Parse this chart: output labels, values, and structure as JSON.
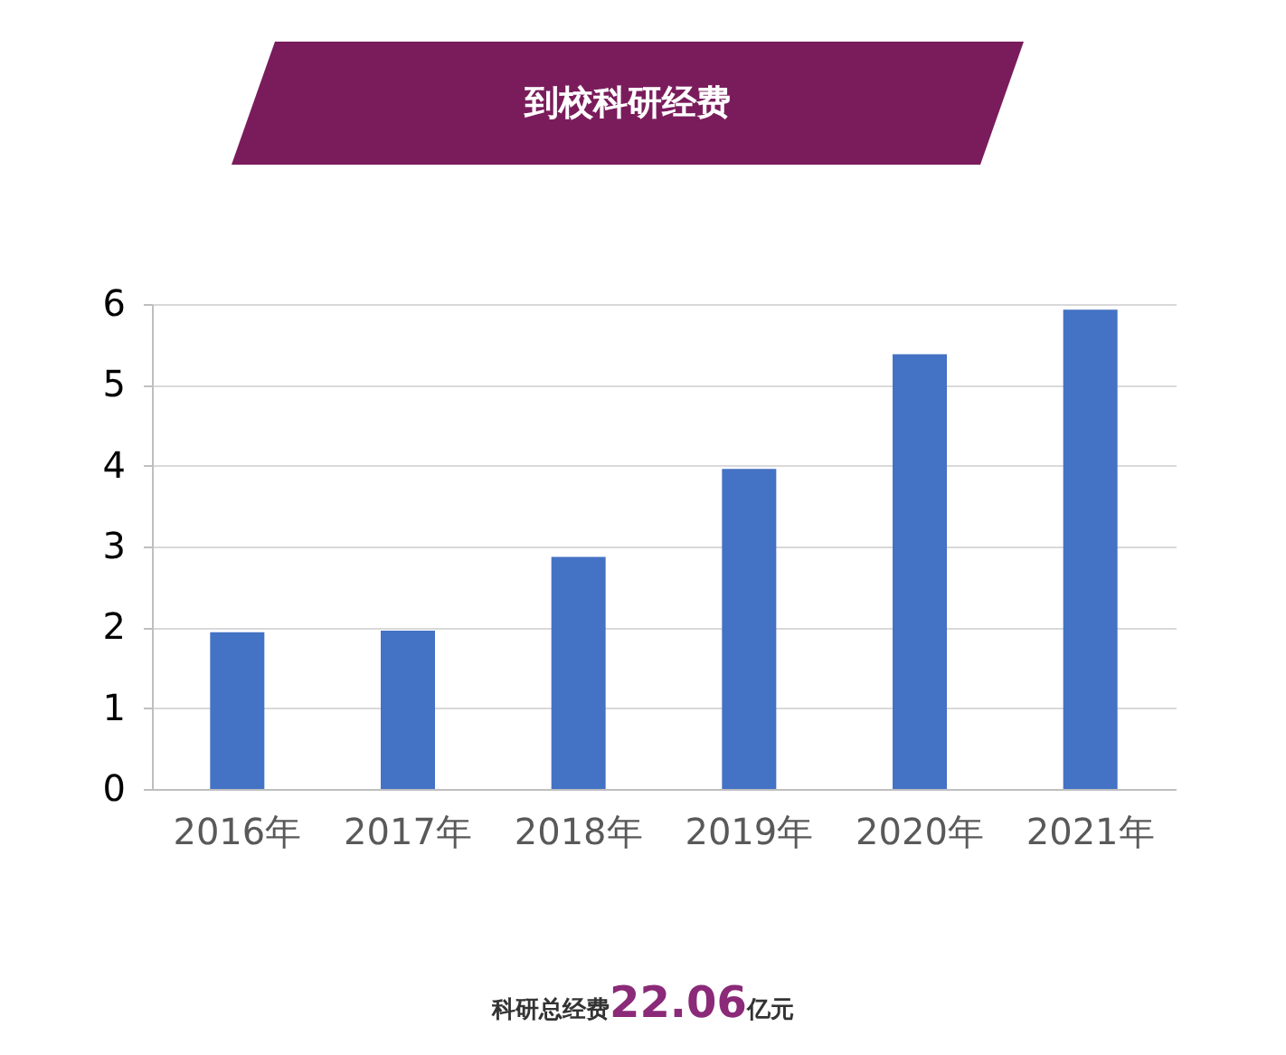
{
  "chart_data": {
    "type": "bar",
    "title": "到校科研经费",
    "categories": [
      "2016年",
      "2017年",
      "2018年",
      "2019年",
      "2020年",
      "2021年"
    ],
    "values": [
      1.94,
      1.96,
      2.87,
      3.96,
      5.38,
      5.93
    ],
    "color": "#4472c4",
    "ylim": [
      0,
      6
    ],
    "yticks": [
      0,
      1,
      2,
      3,
      4,
      5,
      6
    ],
    "grid": "y",
    "annotations": [
      "科研总经费22.06亿元"
    ]
  }
}
